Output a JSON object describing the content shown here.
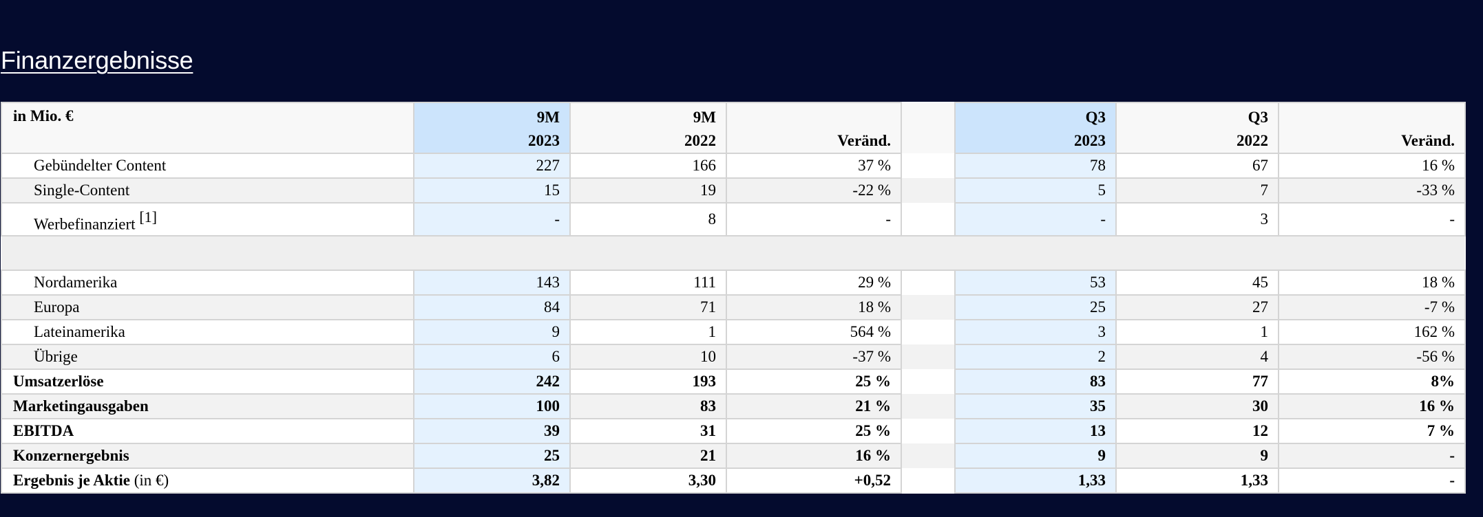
{
  "section": {
    "title": "Finanzergebnisse"
  },
  "table": {
    "header": {
      "label": "in Mio. €",
      "cols": [
        {
          "line1": "9M",
          "line2": "2023"
        },
        {
          "line1": "9M",
          "line2": "2022"
        },
        {
          "line1": "",
          "line2": "Veränd."
        },
        {
          "line1": "Q3",
          "line2": "2023"
        },
        {
          "line1": "Q3",
          "line2": "2022"
        },
        {
          "line1": "",
          "line2": "Veränd."
        }
      ]
    },
    "rows": [
      {
        "label": "Gebündelter Content",
        "v": [
          "227",
          "166",
          "37 %",
          "78",
          "67",
          "16 %"
        ]
      },
      {
        "label": "Single-Content",
        "v": [
          "15",
          "19",
          "-22 %",
          "5",
          "7",
          "-33 %"
        ]
      },
      {
        "label": "Werbefinanziert",
        "footnote": "[1]",
        "v": [
          "-",
          "8",
          "-",
          "-",
          "3",
          "-"
        ]
      },
      {
        "label": "Nordamerika",
        "v": [
          "143",
          "111",
          "29 %",
          "53",
          "45",
          "18 %"
        ]
      },
      {
        "label": "Europa",
        "v": [
          "84",
          "71",
          "18 %",
          "25",
          "27",
          "-7 %"
        ]
      },
      {
        "label": "Lateinamerika",
        "v": [
          "9",
          "1",
          "564 %",
          "3",
          "1",
          "162 %"
        ]
      },
      {
        "label": "Übrige",
        "v": [
          "6",
          "10",
          "-37 %",
          "2",
          "4",
          "-56 %"
        ]
      },
      {
        "label": "Umsatzerlöse",
        "v": [
          "242",
          "193",
          "25 %",
          "83",
          "77",
          "8%"
        ]
      },
      {
        "label": "Marketingausgaben",
        "v": [
          "100",
          "83",
          "21 %",
          "35",
          "30",
          "16 %"
        ]
      },
      {
        "label": "EBITDA",
        "v": [
          "39",
          "31",
          "25 %",
          "13",
          "12",
          "7 %"
        ]
      },
      {
        "label": "Konzernergebnis",
        "v": [
          "25",
          "21",
          "16 %",
          "9",
          "9",
          "-"
        ]
      },
      {
        "label": "Ergebnis je Aktie",
        "unit": "(in €)",
        "v": [
          "3,82",
          "3,30",
          "+0,52",
          "1,33",
          "1,33",
          "-"
        ]
      }
    ]
  },
  "colors": {
    "page_background": "#040b2e",
    "current_period_header": "#cce4fc",
    "current_period_cell": "#e5f2fe",
    "alt_row": "#f2f2f2"
  }
}
